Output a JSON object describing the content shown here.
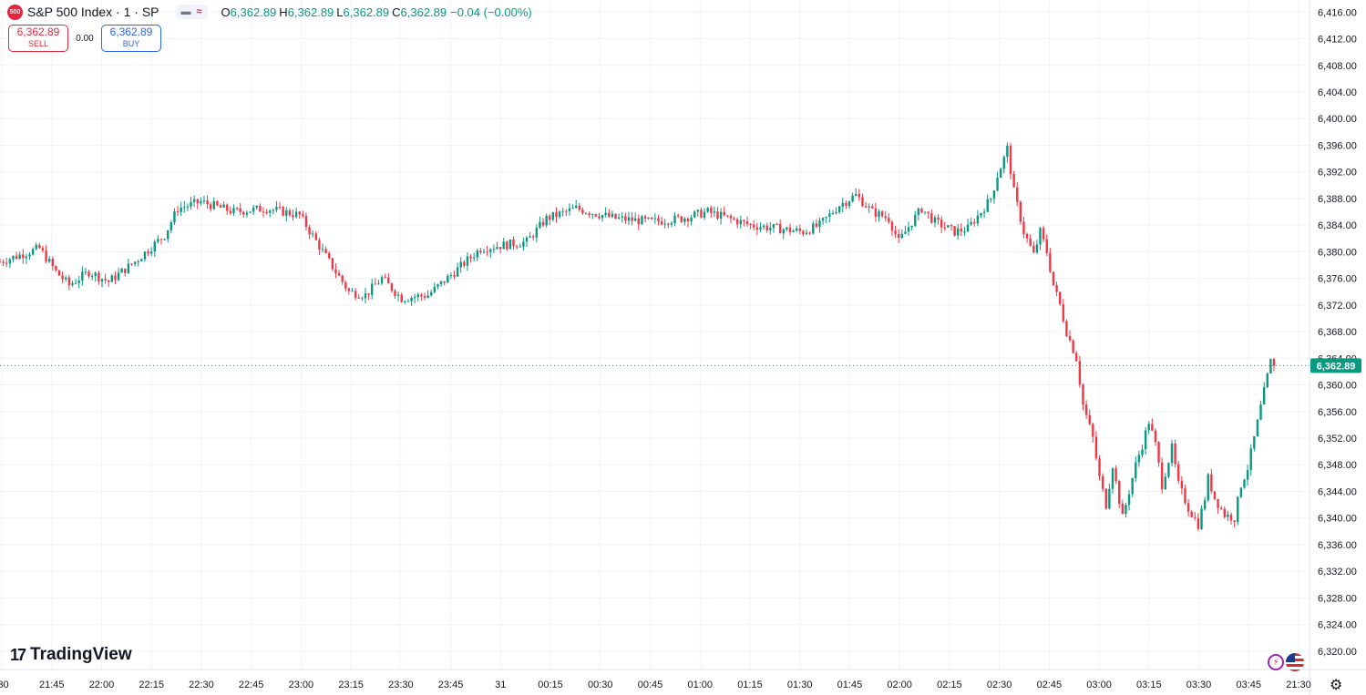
{
  "header": {
    "symbol_badge": "500",
    "title": "S&P 500 Index · 1 · SP",
    "open_label": "O",
    "open": "6,362.89",
    "high_label": "H",
    "high": "6,362.89",
    "low_label": "L",
    "low": "6,362.89",
    "close_label": "C",
    "close": "6,362.89",
    "change": "−0.04 (−0.00%)"
  },
  "trade": {
    "sell_price": "6,362.89",
    "sell_label": "SELL",
    "spread": "0.00",
    "buy_price": "6,362.89",
    "buy_label": "BUY"
  },
  "branding": {
    "logo_text": "TradingView"
  },
  "colors": {
    "up": "#089981",
    "down": "#f23645",
    "grid": "#f0f3fa",
    "last_price": "#089981"
  },
  "icons": [
    "minus-icon",
    "approx-icon",
    "bolt-icon",
    "us-flag-icon",
    "gear-icon"
  ],
  "chart_data": {
    "type": "candlestick",
    "symbol": "S&P 500 Index",
    "interval": "1",
    "x_ticks": [
      ":30",
      "21:45",
      "22:00",
      "22:15",
      "22:30",
      "22:45",
      "23:00",
      "23:15",
      "23:30",
      "23:45",
      "31",
      "00:15",
      "00:30",
      "00:45",
      "01:00",
      "01:15",
      "01:30",
      "01:45",
      "02:00",
      "02:15",
      "02:30",
      "02:45",
      "03:00",
      "03:15",
      "03:30",
      "03:45",
      "21:30"
    ],
    "x_range_minutes": [
      0,
      377
    ],
    "y_ticks": [
      "6,320.00",
      "6,324.00",
      "6,328.00",
      "6,332.00",
      "6,336.00",
      "6,340.00",
      "6,344.00",
      "6,348.00",
      "6,352.00",
      "6,356.00",
      "6,360.00",
      "6,364.00",
      "6,368.00",
      "6,372.00",
      "6,376.00",
      "6,380.00",
      "6,384.00",
      "6,388.00",
      "6,392.00",
      "6,396.00",
      "6,400.00",
      "6,404.00",
      "6,408.00",
      "6,412.00",
      "6,416.00"
    ],
    "ylim": [
      6318.2,
      6417.0
    ],
    "last_price": 6362.89,
    "last_price_label": "6,362.89",
    "grid": true,
    "anchors": [
      [
        0,
        6378.5
      ],
      [
        6,
        6379.5
      ],
      [
        12,
        6380.5
      ],
      [
        17,
        6377
      ],
      [
        21,
        6375
      ],
      [
        27,
        6377
      ],
      [
        33,
        6375.5
      ],
      [
        41,
        6378.5
      ],
      [
        50,
        6382.5
      ],
      [
        54,
        6386.5
      ],
      [
        61,
        6387.5
      ],
      [
        71,
        6386
      ],
      [
        81,
        6386.5
      ],
      [
        91,
        6385.5
      ],
      [
        100,
        6378.5
      ],
      [
        106,
        6374
      ],
      [
        111,
        6373.5
      ],
      [
        116,
        6376
      ],
      [
        122,
        6373
      ],
      [
        130,
        6373.5
      ],
      [
        137,
        6376.5
      ],
      [
        146,
        6380.5
      ],
      [
        160,
        6381.5
      ],
      [
        166,
        6385
      ],
      [
        175,
        6386.5
      ],
      [
        187,
        6385
      ],
      [
        198,
        6384.5
      ],
      [
        207,
        6385
      ],
      [
        215,
        6386
      ],
      [
        228,
        6384
      ],
      [
        244,
        6383
      ],
      [
        249,
        6384
      ],
      [
        255,
        6387
      ],
      [
        260,
        6388.5
      ],
      [
        265,
        6386
      ],
      [
        270,
        6385
      ],
      [
        273,
        6381.5
      ],
      [
        277,
        6384.5
      ],
      [
        280,
        6386.5
      ],
      [
        284,
        6384.5
      ],
      [
        290,
        6383
      ],
      [
        294,
        6383.5
      ],
      [
        298,
        6386
      ],
      [
        301,
        6388
      ],
      [
        303,
        6391.5
      ],
      [
        305,
        6394
      ],
      [
        306,
        6395.5
      ],
      [
        308,
        6389
      ],
      [
        311,
        6383
      ],
      [
        314,
        6379.5
      ],
      [
        316,
        6383
      ],
      [
        318,
        6380
      ],
      [
        320,
        6375
      ],
      [
        322,
        6372
      ],
      [
        324,
        6368
      ],
      [
        327,
        6364
      ],
      [
        329,
        6357
      ],
      [
        332,
        6352
      ],
      [
        334,
        6346
      ],
      [
        336,
        6342
      ],
      [
        338,
        6348
      ],
      [
        341,
        6340
      ],
      [
        343,
        6344
      ],
      [
        345,
        6348
      ],
      [
        347,
        6351
      ],
      [
        349,
        6354.5
      ],
      [
        351,
        6351
      ],
      [
        353,
        6345
      ],
      [
        356,
        6350.5
      ],
      [
        358,
        6345
      ],
      [
        361,
        6341.5
      ],
      [
        364,
        6339
      ],
      [
        366,
        6343
      ],
      [
        367,
        6346
      ],
      [
        369,
        6343
      ],
      [
        372,
        6340.5
      ],
      [
        375,
        6340
      ],
      [
        377,
        6345
      ],
      [
        379,
        6347.5
      ],
      [
        381,
        6352
      ],
      [
        384,
        6359
      ],
      [
        386,
        6363.5
      ],
      [
        387,
        6362.89
      ]
    ]
  }
}
